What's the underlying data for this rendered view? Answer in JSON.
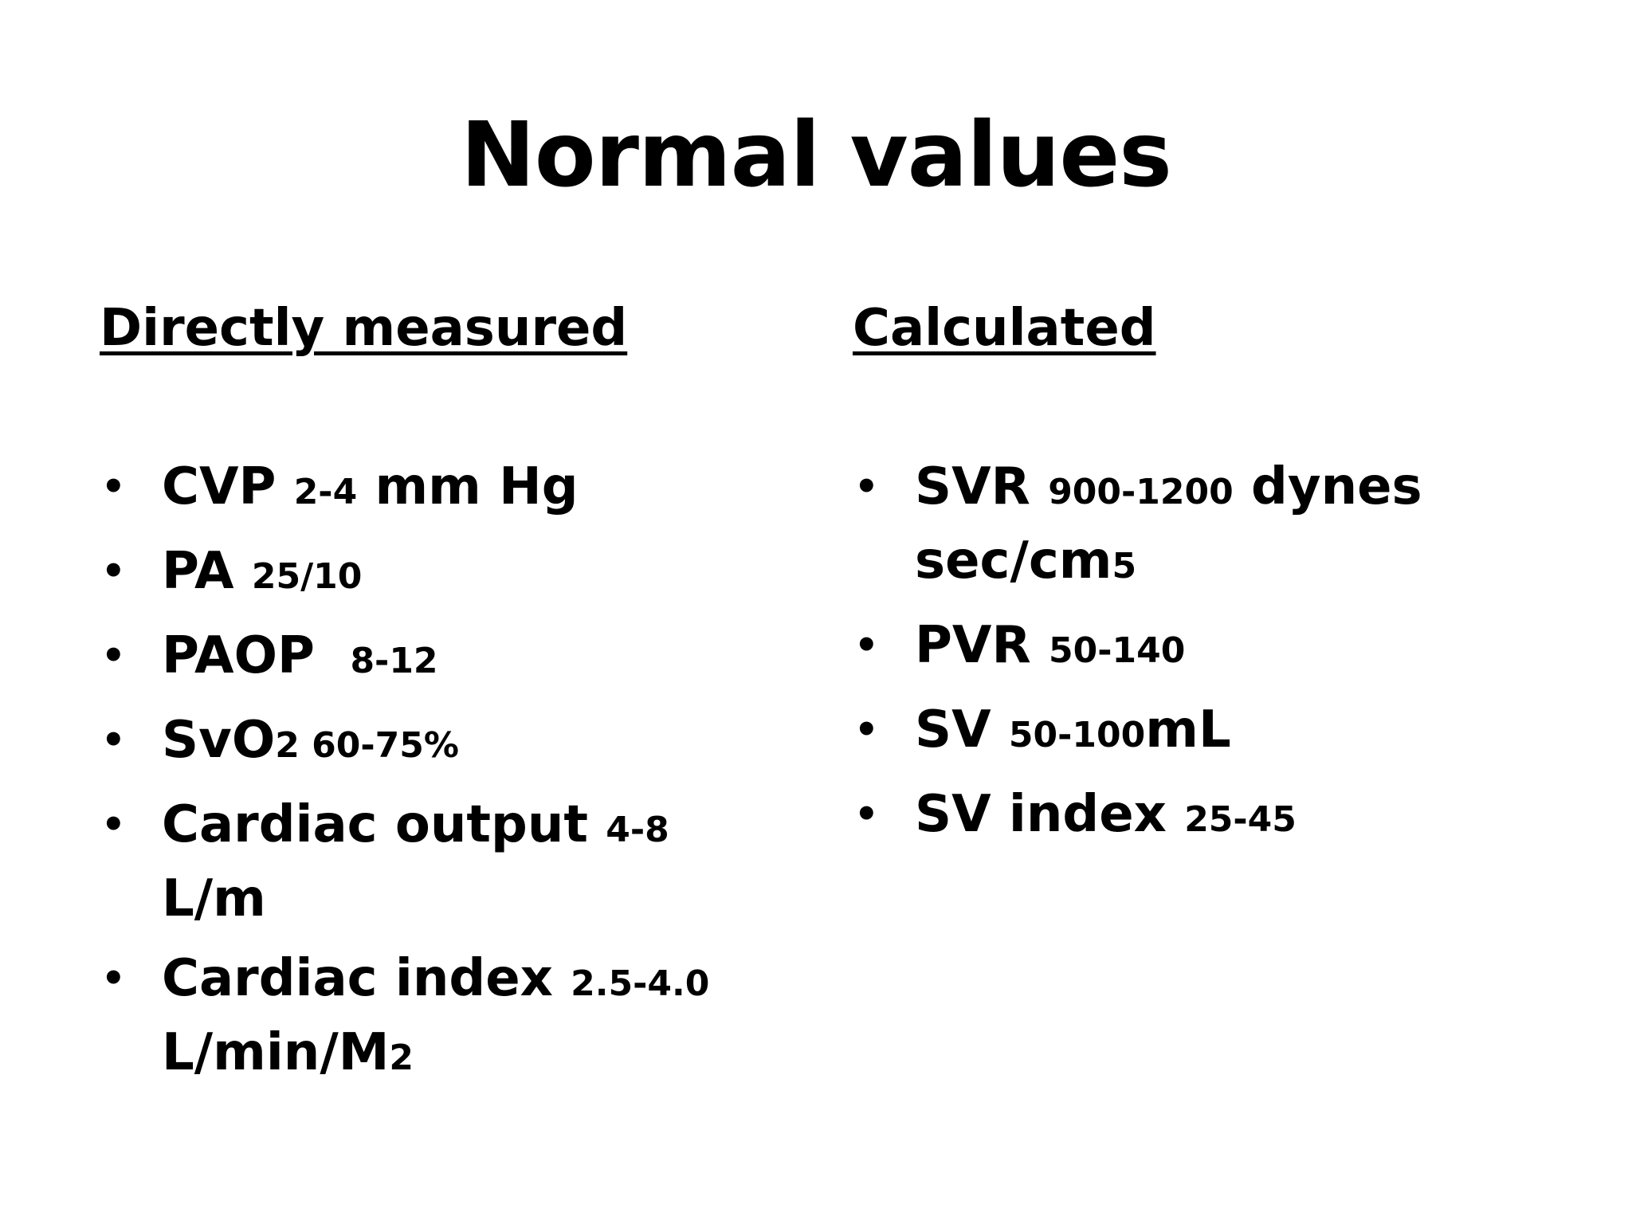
{
  "title": "Normal values",
  "left": {
    "heading": "Directly measured",
    "items": [
      {
        "label": "CVP ",
        "value": "2-4",
        "unit": " mm Hg"
      },
      {
        "label": "PA ",
        "value": "25/10",
        "unit": ""
      },
      {
        "label": "PAOP  ",
        "value": "8-12",
        "unit": ""
      },
      {
        "label": "SvO",
        "value": "2 60-75%",
        "unit": ""
      },
      {
        "label": "Cardiac output ",
        "value": "4-8",
        "unit": " L/m"
      },
      {
        "label": "Cardiac index ",
        "value": "2.5-4.0",
        "unit": " L/min/M",
        "suffix": "2"
      }
    ]
  },
  "right": {
    "heading": "Calculated",
    "items": [
      {
        "label": "SVR ",
        "value": "900-1200",
        "unit": " dynes sec/cm",
        "suffix": "5"
      },
      {
        "label": "PVR ",
        "value": "50-140",
        "unit": ""
      },
      {
        "label": "SV ",
        "value": "50-100",
        "unit": "mL"
      },
      {
        "label": "SV index ",
        "value": "25-45",
        "unit": ""
      }
    ]
  },
  "bullet_glyph": "•"
}
